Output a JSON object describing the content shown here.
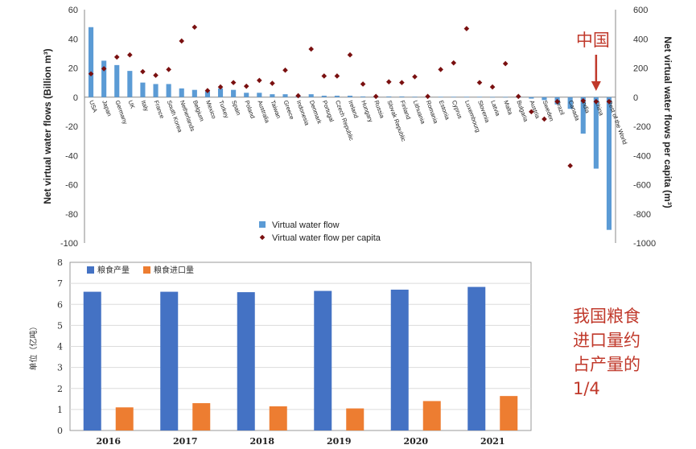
{
  "chart_data": [
    {
      "type": "bar",
      "title": "",
      "ylabel": "Net virtual water flows (Billion m³)",
      "y2label": "Net virtual water flows per capita (m³)",
      "ylim": [
        -100,
        60
      ],
      "y_ticks": [
        60,
        40,
        20,
        0,
        -20,
        -40,
        -60,
        -80,
        -100
      ],
      "y2lim": [
        -1000,
        600
      ],
      "y2_ticks": [
        600,
        400,
        200,
        0,
        -200,
        -400,
        -600,
        -800,
        -1000
      ],
      "grid": false,
      "legend_position": "bottom-center",
      "categories": [
        "USA",
        "Japan",
        "Germany",
        "UK",
        "Italy",
        "France",
        "South Korea",
        "Netherlands",
        "Belgium",
        "Mexico",
        "Turkey",
        "Spain",
        "Poland",
        "Australia",
        "Taiwan",
        "Greece",
        "Indonesia",
        "Denmark",
        "Portugal",
        "Czech Republic",
        "Ireland",
        "Hungary",
        "Russia",
        "Slovak Republic",
        "Finland",
        "Lithuania",
        "Romania",
        "Estonia",
        "Cyprus",
        "Luxembourg",
        "Slovenia",
        "Latvia",
        "Malta",
        "Bulgaria",
        "Austria",
        "Sweden",
        "Brazil",
        "Canada",
        "India",
        "China",
        "Rest of the World"
      ],
      "series": [
        {
          "name": "Virtual water flow",
          "kind": "bar",
          "color": "#5b9bd5",
          "axis": "left",
          "values": [
            48,
            25,
            22,
            18,
            10,
            9,
            9,
            6,
            5,
            4,
            6,
            5,
            3,
            3,
            2,
            2,
            1,
            2,
            1,
            1,
            1,
            0.5,
            0.5,
            0.5,
            0.5,
            0.3,
            0.3,
            0.2,
            0.2,
            0.2,
            0.2,
            0.1,
            0.1,
            -0.3,
            -1,
            -2,
            -5,
            -8,
            -25,
            -49,
            -91
          ]
        },
        {
          "name": "Virtual water flow per capita",
          "kind": "scatter",
          "color": "#7a1010",
          "axis": "right",
          "values": [
            160,
            195,
            275,
            290,
            175,
            150,
            190,
            385,
            480,
            45,
            70,
            100,
            75,
            115,
            95,
            185,
            10,
            330,
            145,
            145,
            290,
            90,
            5,
            105,
            100,
            140,
            5,
            190,
            235,
            470,
            100,
            70,
            230,
            5,
            -100,
            -150,
            -30,
            -470,
            -25,
            -30,
            -30
          ]
        }
      ],
      "annotations": [
        {
          "text": "中国",
          "color": "#c0392b",
          "target_category": "China"
        }
      ]
    },
    {
      "type": "bar",
      "title": "",
      "xlabel": "",
      "ylabel": "单位（亿吨）",
      "ylim": [
        0,
        8
      ],
      "y_ticks": [
        0,
        1,
        2,
        3,
        4,
        5,
        6,
        7,
        8
      ],
      "grid": true,
      "legend_position": "top-left",
      "categories": [
        "2016",
        "2017",
        "2018",
        "2019",
        "2020",
        "2021"
      ],
      "series": [
        {
          "name": "粮食产量",
          "color": "#4472c4",
          "values": [
            6.6,
            6.6,
            6.58,
            6.64,
            6.7,
            6.83
          ]
        },
        {
          "name": "粮食进口量",
          "color": "#ed7d31",
          "values": [
            1.1,
            1.3,
            1.15,
            1.05,
            1.4,
            1.64
          ]
        }
      ]
    }
  ],
  "annotation_text": [
    "我国粮食",
    "进口量约",
    "占产量的",
    "1/4"
  ]
}
